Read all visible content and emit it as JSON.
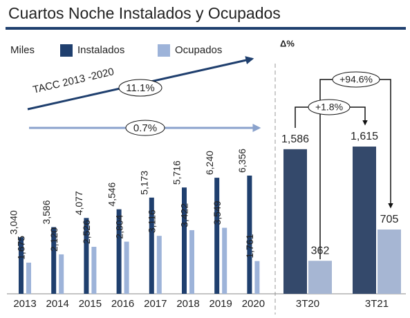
{
  "chart_data": [
    {
      "type": "bar",
      "title": "Cuartos Noche Instalados y Ocupados",
      "unit_label": "Miles",
      "categories": [
        "2013",
        "2014",
        "2015",
        "2016",
        "2017",
        "2018",
        "2019",
        "2020"
      ],
      "series": [
        {
          "name": "Instalados",
          "color": "#1f3f6e",
          "values": [
            3040,
            3586,
            4077,
            4546,
            5173,
            5716,
            6240,
            6356
          ],
          "value_labels": [
            "3,040",
            "3,586",
            "4,077",
            "4,546",
            "5,173",
            "5,716",
            "6,240",
            "6,356"
          ]
        },
        {
          "name": "Ocupados",
          "color": "#9db3d9",
          "values": [
            1675,
            2120,
            2526,
            2804,
            3116,
            3422,
            3549,
            1761
          ],
          "value_labels": [
            "1,675",
            "2,120",
            "2,526",
            "2,804",
            "3,116",
            "3,422",
            "3,549",
            "1,761"
          ]
        }
      ],
      "annotations": [
        "TACC 2013 -2020",
        "11.1%",
        "0.7%"
      ]
    },
    {
      "type": "bar",
      "title": "Δ%",
      "categories": [
        "3T20",
        "3T21"
      ],
      "series": [
        {
          "color": "#34496b",
          "values": [
            1586,
            1615
          ],
          "value_labels": [
            "1,586",
            "1,615"
          ]
        },
        {
          "color": "#a6b6d3",
          "values": [
            362,
            705
          ]
        }
      ],
      "annotations": [
        "+1.8%",
        "+94.6%"
      ]
    }
  ]
}
